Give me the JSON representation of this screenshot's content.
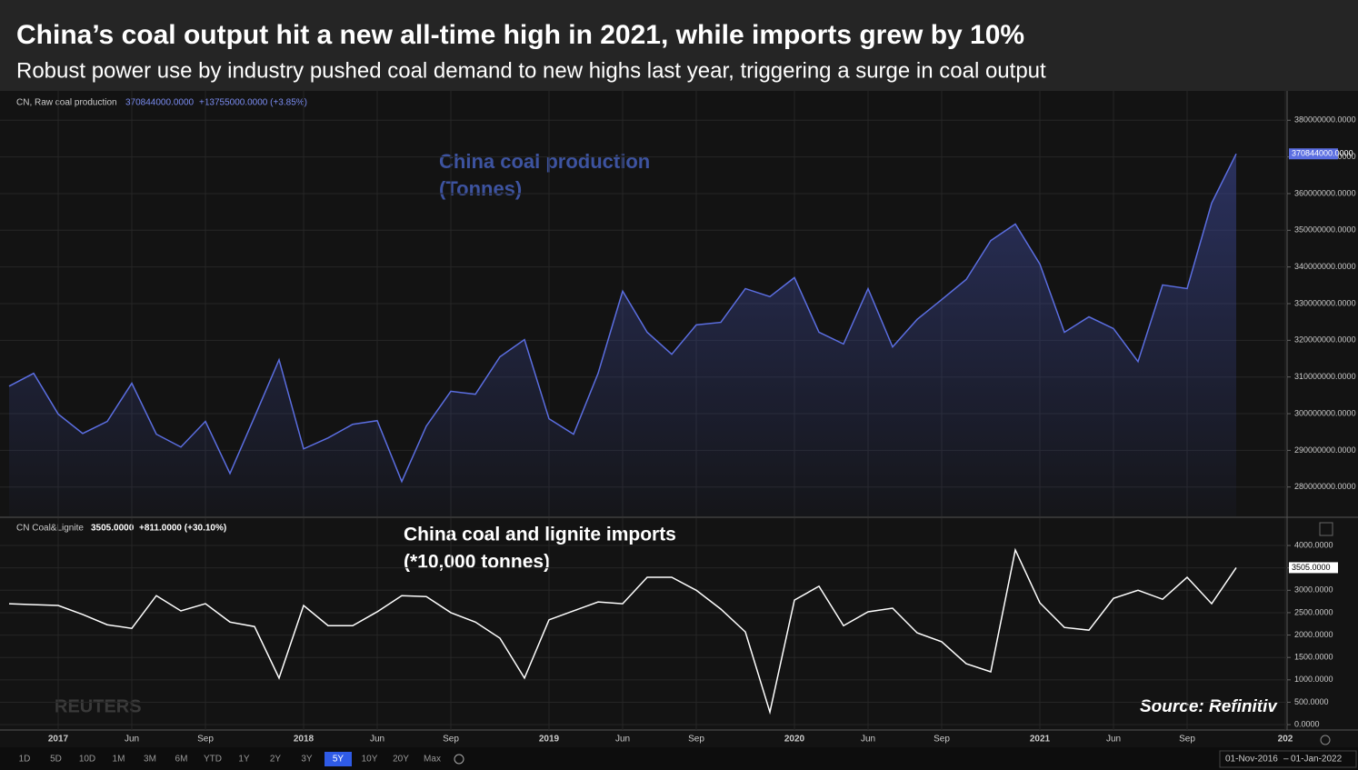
{
  "chart_data": [
    {
      "type": "area",
      "title": "China’s coal output hit a new all-time high in 2021, while imports grew by 10%",
      "subtitle": "Robust power use by industry pushed coal demand to new highs last year, triggering a surge in coal output",
      "legend": {
        "name": "CN, Raw coal production",
        "last": "370844000.0000",
        "change": "+13755000.0000 (+3.85%)"
      },
      "annotation": [
        "China coal production",
        "(Tonnes)"
      ],
      "color": "#5b6ee1",
      "values": [
        307500000,
        311000000,
        299900000,
        294600000,
        297900000,
        308300000,
        294400000,
        290900000,
        297900000,
        283700000,
        299100000,
        314700000,
        290400000,
        293400000,
        297100000,
        298100000,
        281500000,
        296600000,
        306100000,
        305300000,
        315500000,
        320200000,
        298600000,
        294400000,
        311000000,
        333400000,
        322200000,
        316200000,
        324200000,
        324900000,
        334100000,
        331900000,
        337100000,
        322200000,
        319000000,
        334100000,
        318200000,
        325700000,
        331100000,
        336600000,
        347200000,
        351700000,
        340800000,
        322200000,
        326400000,
        323200000,
        314200000,
        335100000,
        334100000,
        357400000,
        370844000,
        null,
        null
      ],
      "ylim": [
        272000000,
        388000000
      ],
      "yticks": [
        {
          "value": 280000000,
          "label": "280000000.0000"
        },
        {
          "value": 290000000,
          "label": "290000000.0000"
        },
        {
          "value": 300000000,
          "label": "300000000.0000"
        },
        {
          "value": 310000000,
          "label": "310000000.0000"
        },
        {
          "value": 320000000,
          "label": "320000000.0000"
        },
        {
          "value": 330000000,
          "label": "330000000.0000"
        },
        {
          "value": 340000000,
          "label": "340000000.0000"
        },
        {
          "value": 350000000,
          "label": "350000000.0000"
        },
        {
          "value": 360000000,
          "label": "360000000.0000"
        },
        {
          "value": 370000000,
          "label": "370000000.0000"
        },
        {
          "value": 380000000,
          "label": "380000000.0000"
        }
      ],
      "grid": true
    },
    {
      "type": "line",
      "legend": {
        "name": "CN Coal&Lignite",
        "last": "3505.0000",
        "change": "+811.0000 (+30.10%)"
      },
      "annotation": [
        "China coal and lignite imports",
        "(*10,000 tonnes)"
      ],
      "source": "Source: Refinitiv",
      "watermark": "REUTERS",
      "color": "#ffffff",
      "categories": [
        null,
        null,
        "2017",
        null,
        null,
        "Jun",
        null,
        null,
        "Sep",
        null,
        null,
        null,
        "2018",
        null,
        null,
        "Jun",
        null,
        null,
        "Sep",
        null,
        null,
        null,
        "2019",
        null,
        null,
        "Jun",
        null,
        null,
        "Sep",
        null,
        null,
        null,
        "2020",
        null,
        null,
        "Jun",
        null,
        null,
        "Sep",
        null,
        null,
        null,
        "2021",
        null,
        null,
        "Jun",
        null,
        null,
        "Sep",
        null,
        null,
        null,
        "202"
      ],
      "values": [
        2700,
        2680,
        2660,
        2460,
        2230,
        2150,
        2880,
        2540,
        2700,
        2290,
        2190,
        1040,
        2660,
        2210,
        2210,
        2520,
        2880,
        2860,
        2500,
        2290,
        1930,
        1040,
        2340,
        2540,
        2740,
        2700,
        3290,
        3290,
        3000,
        2580,
        2070,
        280,
        2780,
        3090,
        2210,
        2520,
        2600,
        2050,
        1850,
        1360,
        1180,
        3900,
        2720,
        2170,
        2110,
        2820,
        3000,
        2800,
        3290,
        2700,
        3505,
        null,
        null
      ],
      "ylim": [
        -120,
        4610
      ],
      "yticks": [
        {
          "value": 0,
          "label": "0.0000"
        },
        {
          "value": 500,
          "label": "500.0000"
        },
        {
          "value": 1000,
          "label": "1000.0000"
        },
        {
          "value": 1500,
          "label": "1500.0000"
        },
        {
          "value": 2000,
          "label": "2000.0000"
        },
        {
          "value": 2500,
          "label": "2500.0000"
        },
        {
          "value": 3000,
          "label": "3000.0000"
        },
        {
          "value": 3500,
          "label": "3500.0000"
        },
        {
          "value": 4000,
          "label": "4000.0000"
        }
      ],
      "grid": true
    }
  ],
  "toolbar": {
    "ranges": [
      "1D",
      "5D",
      "10D",
      "1M",
      "3M",
      "6M",
      "YTD",
      "1Y",
      "2Y",
      "3Y",
      "5Y",
      "10Y",
      "20Y",
      "Max"
    ],
    "active_index": 10,
    "from": "01-Nov-2016",
    "to": "01-Jan-2022"
  }
}
